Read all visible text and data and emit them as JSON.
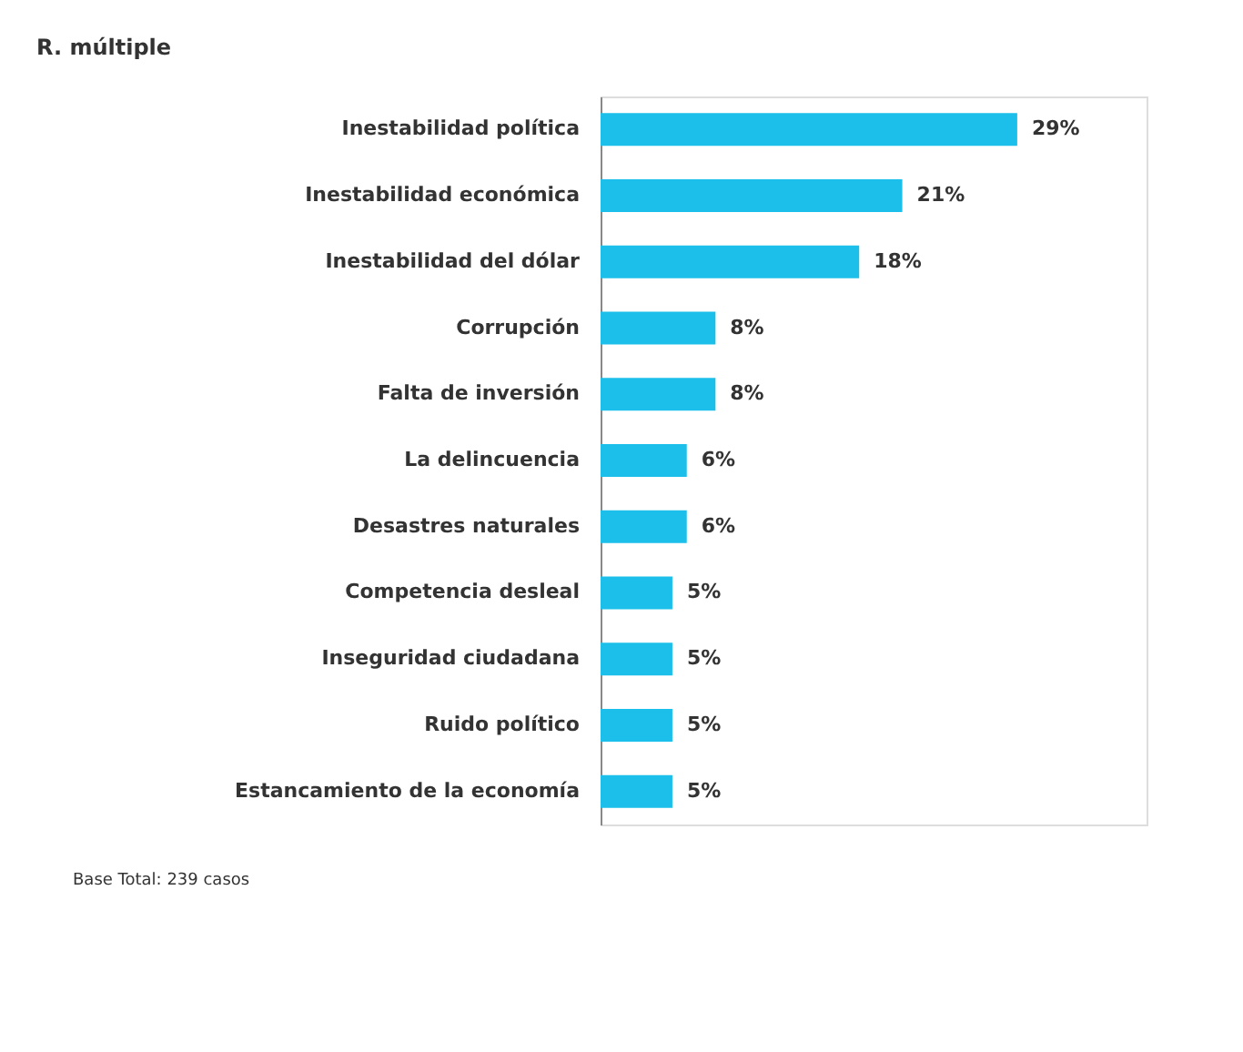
{
  "chart_data": {
    "type": "bar",
    "orientation": "horizontal",
    "title": "R. múltiple",
    "categories": [
      "Inestabilidad política",
      "Inestabilidad económica",
      "Inestabilidad del dólar",
      "Corrupción",
      "Falta de inversión",
      "La delincuencia",
      "Desastres naturales",
      "Competencia desleal",
      "Inseguridad ciudadana",
      "Ruido político",
      "Estancamiento de la economía"
    ],
    "values": [
      29,
      21,
      18,
      8,
      8,
      6,
      6,
      5,
      5,
      5,
      5
    ],
    "value_labels": [
      "29%",
      "21%",
      "18%",
      "8%",
      "8%",
      "6%",
      "6%",
      "5%",
      "5%",
      "5%",
      "5%"
    ],
    "color": "#1cbfe9",
    "xlim": [
      0,
      38
    ],
    "tick_labels": "y",
    "grid": false,
    "annotations": [
      "Base Total: 239 casos"
    ]
  }
}
